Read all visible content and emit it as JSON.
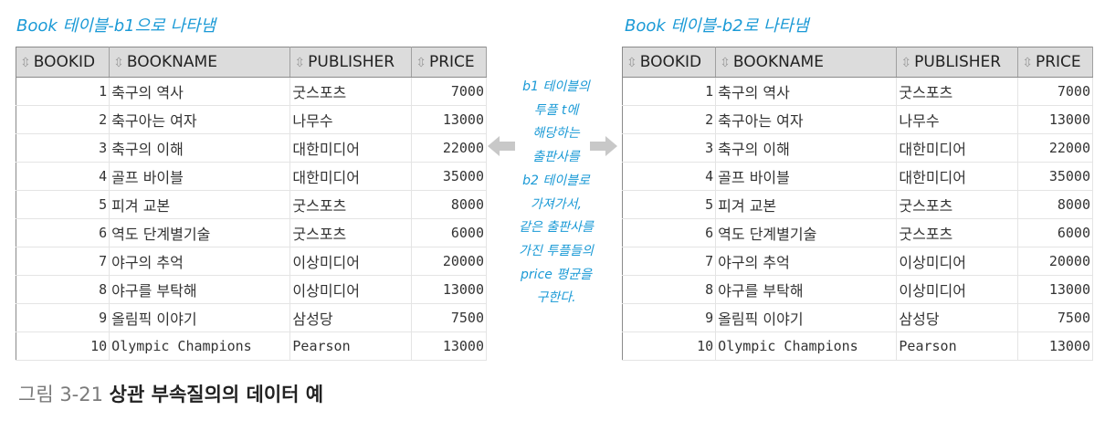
{
  "captions": {
    "left": "Book 테이블-b1으로 나타냄",
    "right": "Book 테이블-b2로 나타냄"
  },
  "table": {
    "headers": [
      "BOOKID",
      "BOOKNAME",
      "PUBLISHER",
      "PRICE"
    ],
    "rows": [
      [
        "1",
        "축구의 역사",
        "굿스포츠",
        "7000"
      ],
      [
        "2",
        "축구아는 여자",
        "나무수",
        "13000"
      ],
      [
        "3",
        "축구의 이해",
        "대한미디어",
        "22000"
      ],
      [
        "4",
        "골프 바이블",
        "대한미디어",
        "35000"
      ],
      [
        "5",
        "피겨 교본",
        "굿스포츠",
        "8000"
      ],
      [
        "6",
        "역도 단계별기술",
        "굿스포츠",
        "6000"
      ],
      [
        "7",
        "야구의 추억",
        "이상미디어",
        "20000"
      ],
      [
        "8",
        "야구를 부탁해",
        "이상미디어",
        "13000"
      ],
      [
        "9",
        "올림픽 이야기",
        "삼성당",
        "7500"
      ],
      [
        "10",
        "Olympic Champions",
        "Pearson",
        "13000"
      ]
    ]
  },
  "note_lines": [
    "b1 테이블의",
    "투플 t에",
    "해당하는",
    "출판사를",
    "b2 테이블로",
    "가져가서,",
    "같은 출판사를",
    "가진 투플들의",
    "price 평균을",
    "구한다."
  ],
  "figure": {
    "number": "그림 3-21",
    "title": "상관 부속질의의 데이터 예"
  },
  "colors": {
    "accent": "#1b9ad6",
    "arrow": "#c8c8c8",
    "header_bg": "#dcdcdc"
  },
  "icons": {
    "sort": "sort-arrows-icon",
    "arrow_left": "arrow-left-icon",
    "arrow_right": "arrow-right-icon"
  }
}
